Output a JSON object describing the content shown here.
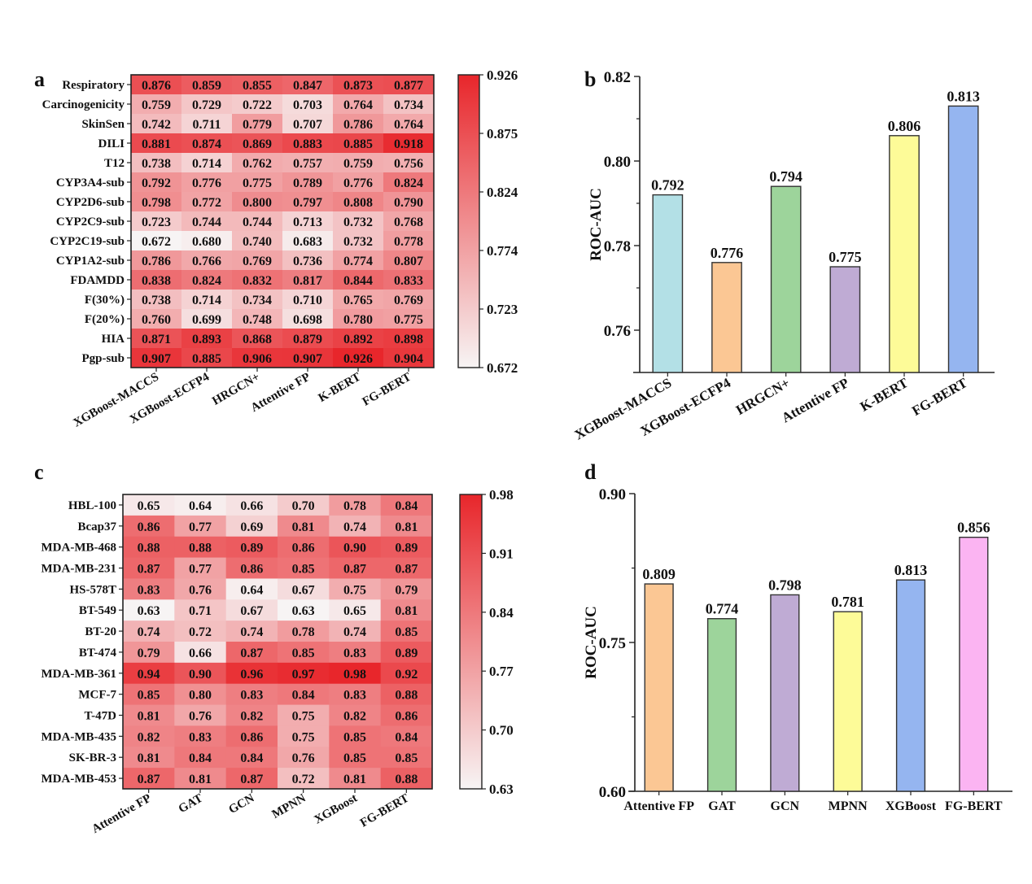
{
  "chart_data": [
    {
      "panel": "a",
      "type": "heatmap",
      "title": "",
      "rows": [
        "Respiratory",
        "Carcinogenicity",
        "SkinSen",
        "DILI",
        "T12",
        "CYP3A4-sub",
        "CYP2D6-sub",
        "CYP2C9-sub",
        "CYP2C19-sub",
        "CYP1A2-sub",
        "FDAMDD",
        "F(30%)",
        "F(20%)",
        "HIA",
        "Pgp-sub"
      ],
      "columns": [
        "XGBoost-MACCS",
        "XGBoost-ECFP4",
        "HRGCN+",
        "Attentive FP",
        "K-BERT",
        "FG-BERT"
      ],
      "values": [
        [
          "0.876",
          "0.859",
          "0.855",
          "0.847",
          "0.873",
          "0.877"
        ],
        [
          "0.759",
          "0.729",
          "0.722",
          "0.703",
          "0.764",
          "0.734"
        ],
        [
          "0.742",
          "0.711",
          "0.779",
          "0.707",
          "0.786",
          "0.764"
        ],
        [
          "0.881",
          "0.874",
          "0.869",
          "0.883",
          "0.885",
          "0.918"
        ],
        [
          "0.738",
          "0.714",
          "0.762",
          "0.757",
          "0.759",
          "0.756"
        ],
        [
          "0.792",
          "0.776",
          "0.775",
          "0.789",
          "0.776",
          "0.824"
        ],
        [
          "0.798",
          "0.772",
          "0.800",
          "0.797",
          "0.808",
          "0.790"
        ],
        [
          "0.723",
          "0.744",
          "0.744",
          "0.713",
          "0.732",
          "0.768"
        ],
        [
          "0.672",
          "0.680",
          "0.740",
          "0.683",
          "0.732",
          "0.778"
        ],
        [
          "0.786",
          "0.766",
          "0.769",
          "0.736",
          "0.774",
          "0.807"
        ],
        [
          "0.838",
          "0.824",
          "0.832",
          "0.817",
          "0.844",
          "0.833"
        ],
        [
          "0.738",
          "0.714",
          "0.734",
          "0.710",
          "0.765",
          "0.769"
        ],
        [
          "0.760",
          "0.699",
          "0.748",
          "0.698",
          "0.780",
          "0.775"
        ],
        [
          "0.871",
          "0.893",
          "0.868",
          "0.879",
          "0.892",
          "0.898"
        ],
        [
          "0.907",
          "0.885",
          "0.906",
          "0.907",
          "0.926",
          "0.904"
        ]
      ],
      "colorbar": {
        "min": 0.672,
        "max": 0.926,
        "ticks": [
          "0.926",
          "0.875",
          "0.824",
          "0.774",
          "0.723",
          "0.672"
        ],
        "low_color": "#f7f4f4",
        "high_color": "#e8262b"
      }
    },
    {
      "panel": "b",
      "type": "bar",
      "title": "",
      "xlabel": "",
      "ylabel": "ROC-AUC",
      "categories": [
        "XGBoost-MACCS",
        "XGBoost-ECFP4",
        "HRGCN+",
        "Attentive FP",
        "K-BERT",
        "FG-BERT"
      ],
      "values": [
        0.792,
        0.776,
        0.794,
        0.775,
        0.806,
        0.813
      ],
      "labels": [
        "0.792",
        "0.776",
        "0.794",
        "0.775",
        "0.806",
        "0.813"
      ],
      "colors": [
        "#b3e0e6",
        "#fbc794",
        "#9dd49b",
        "#bfabd4",
        "#fdfb98",
        "#95b5f0"
      ],
      "ylim": [
        0.75,
        0.82
      ],
      "yticks": [
        "0.82",
        "0.80",
        "0.78",
        "0.76"
      ],
      "ytick_values": [
        0.82,
        0.8,
        0.78,
        0.76
      ],
      "minor_ticks": [
        0.81,
        0.79,
        0.77
      ],
      "grid": false
    },
    {
      "panel": "c",
      "type": "heatmap",
      "title": "",
      "rows": [
        "HBL-100",
        "Bcap37",
        "MDA-MB-468",
        "MDA-MB-231",
        "HS-578T",
        "BT-549",
        "BT-20",
        "BT-474",
        "MDA-MB-361",
        "MCF-7",
        "T-47D",
        "MDA-MB-435",
        "SK-BR-3",
        "MDA-MB-453"
      ],
      "columns": [
        "Attentive FP",
        "GAT",
        "GCN",
        "MPNN",
        "XGBoost",
        "FG-BERT"
      ],
      "values": [
        [
          "0.65",
          "0.64",
          "0.66",
          "0.70",
          "0.78",
          "0.84"
        ],
        [
          "0.86",
          "0.77",
          "0.69",
          "0.81",
          "0.74",
          "0.81"
        ],
        [
          "0.88",
          "0.88",
          "0.89",
          "0.86",
          "0.90",
          "0.89"
        ],
        [
          "0.87",
          "0.77",
          "0.86",
          "0.85",
          "0.87",
          "0.87"
        ],
        [
          "0.83",
          "0.76",
          "0.64",
          "0.67",
          "0.75",
          "0.79"
        ],
        [
          "0.63",
          "0.71",
          "0.67",
          "0.63",
          "0.65",
          "0.81"
        ],
        [
          "0.74",
          "0.72",
          "0.74",
          "0.78",
          "0.74",
          "0.85"
        ],
        [
          "0.79",
          "0.66",
          "0.87",
          "0.85",
          "0.83",
          "0.89"
        ],
        [
          "0.94",
          "0.90",
          "0.96",
          "0.97",
          "0.98",
          "0.92"
        ],
        [
          "0.85",
          "0.80",
          "0.83",
          "0.84",
          "0.83",
          "0.88"
        ],
        [
          "0.81",
          "0.76",
          "0.82",
          "0.75",
          "0.82",
          "0.86"
        ],
        [
          "0.82",
          "0.83",
          "0.86",
          "0.75",
          "0.85",
          "0.84"
        ],
        [
          "0.81",
          "0.84",
          "0.84",
          "0.76",
          "0.85",
          "0.85"
        ],
        [
          "0.87",
          "0.81",
          "0.87",
          "0.72",
          "0.81",
          "0.88"
        ]
      ],
      "colorbar": {
        "min": 0.63,
        "max": 0.98,
        "ticks": [
          "0.98",
          "0.91",
          "0.84",
          "0.77",
          "0.70",
          "0.63"
        ],
        "low_color": "#f7f4f4",
        "high_color": "#e8262b"
      }
    },
    {
      "panel": "d",
      "type": "bar",
      "title": "",
      "xlabel": "",
      "ylabel": "ROC-AUC",
      "categories": [
        "Attentive FP",
        "GAT",
        "GCN",
        "MPNN",
        "XGBoost",
        "FG-BERT"
      ],
      "values": [
        0.809,
        0.774,
        0.798,
        0.781,
        0.813,
        0.856
      ],
      "labels": [
        "0.809",
        "0.774",
        "0.798",
        "0.781",
        "0.813",
        "0.856"
      ],
      "colors": [
        "#fbc794",
        "#9dd49b",
        "#bfabd4",
        "#fdfb98",
        "#95b5f0",
        "#fbb4f2"
      ],
      "ylim": [
        0.6,
        0.9
      ],
      "yticks": [
        "0.90",
        "0.75",
        "0.60"
      ],
      "ytick_values": [
        0.9,
        0.75,
        0.6
      ],
      "minor_ticks": [
        0.825,
        0.675
      ],
      "grid": false
    }
  ],
  "panel_labels": [
    "a",
    "b",
    "c",
    "d"
  ]
}
